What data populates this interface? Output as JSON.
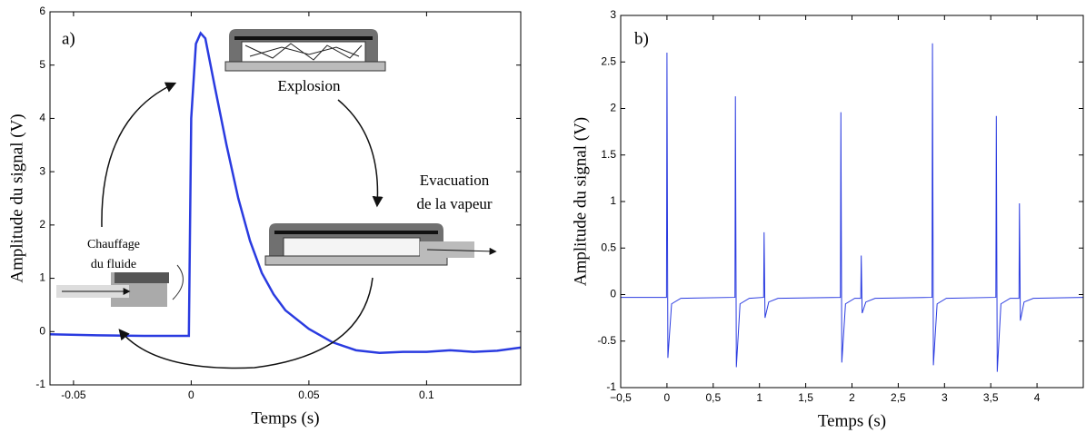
{
  "chart_data": [
    {
      "type": "line",
      "label": "a)",
      "xlabel": "Temps (s)",
      "ylabel": "Amplitude du signal (V)",
      "annotations": [
        "Explosion",
        "Evacuation",
        "de la vapeur",
        "Chauffage",
        "du fluide"
      ],
      "color": "#2a3be0",
      "xlim": [
        -0.06,
        0.14
      ],
      "xticks": [
        -0.05,
        0,
        0.05,
        0.1
      ],
      "ylim": [
        -1,
        6
      ],
      "yticks": [
        -1,
        0,
        1,
        2,
        3,
        4,
        5,
        6
      ],
      "x": [
        -0.06,
        -0.04,
        -0.02,
        -0.005,
        -0.001,
        0,
        0.002,
        0.004,
        0.006,
        0.01,
        0.015,
        0.02,
        0.025,
        0.03,
        0.035,
        0.04,
        0.05,
        0.06,
        0.07,
        0.08,
        0.09,
        0.1,
        0.11,
        0.12,
        0.13,
        0.14
      ],
      "values": [
        -0.05,
        -0.07,
        -0.08,
        -0.08,
        -0.08,
        4.0,
        5.4,
        5.6,
        5.5,
        4.6,
        3.5,
        2.5,
        1.7,
        1.1,
        0.7,
        0.4,
        0.05,
        -0.2,
        -0.35,
        -0.4,
        -0.38,
        -0.38,
        -0.35,
        -0.38,
        -0.36,
        -0.3
      ]
    },
    {
      "type": "line",
      "label": "b)",
      "xlabel": "Temps (s)",
      "ylabel": "Amplitude du signal (V)",
      "color": "#2a3be0",
      "xlim": [
        -0.5,
        4.5
      ],
      "xticks": [
        {
          "value": -0.5,
          "label": "−0,5"
        },
        0,
        {
          "value": 0.5,
          "label": "0,5"
        },
        1,
        {
          "value": 1.5,
          "label": "1,5"
        },
        2,
        {
          "value": 2.5,
          "label": "2,5"
        },
        3,
        {
          "value": 3.5,
          "label": "3,5"
        },
        4
      ],
      "ylim": [
        -1,
        3
      ],
      "yticks": [
        -1,
        -0.5,
        0,
        0.5,
        1,
        1.5,
        2,
        2.5,
        3
      ],
      "x": [
        -0.5,
        -0.005,
        0,
        0.01,
        0.05,
        0.15,
        0.735,
        0.74,
        0.75,
        0.79,
        0.89,
        1.045,
        1.05,
        1.06,
        1.1,
        1.2,
        1.875,
        1.88,
        1.89,
        1.93,
        2.03,
        2.095,
        2.1,
        2.11,
        2.15,
        2.25,
        2.865,
        2.87,
        2.88,
        2.92,
        3.02,
        3.555,
        3.56,
        3.57,
        3.61,
        3.71,
        3.805,
        3.81,
        3.82,
        3.86,
        3.96,
        4.5
      ],
      "values": [
        -0.03,
        -0.03,
        2.6,
        -0.68,
        -0.1,
        -0.04,
        -0.03,
        2.13,
        -0.78,
        -0.1,
        -0.04,
        -0.03,
        0.67,
        -0.25,
        -0.08,
        -0.04,
        -0.03,
        1.96,
        -0.73,
        -0.1,
        -0.04,
        -0.04,
        0.42,
        -0.2,
        -0.08,
        -0.04,
        -0.03,
        2.7,
        -0.76,
        -0.1,
        -0.04,
        -0.03,
        1.92,
        -0.83,
        -0.1,
        -0.04,
        -0.04,
        0.98,
        -0.28,
        -0.08,
        -0.04,
        -0.03
      ]
    }
  ]
}
